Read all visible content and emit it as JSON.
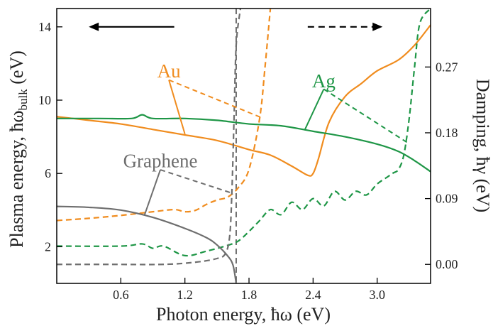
{
  "chart_data": {
    "type": "line",
    "xlabel": "Photon energy, ħω (eV)",
    "ylabel_left": {
      "main": "Plasma energy, ħω",
      "sub": "bulk",
      "unit": " (eV)"
    },
    "ylabel_right": "Damping, ħγ (eV)",
    "xlim": [
      0.0,
      3.5
    ],
    "ylim_left": [
      0,
      15
    ],
    "ylim_right": [
      -0.026,
      0.35
    ],
    "x_ticks": [
      "0.6",
      "1.2",
      "1.8",
      "2.4",
      "3.0"
    ],
    "y_left_ticks": [
      "2",
      "6",
      "10",
      "14"
    ],
    "y_right_ticks": [
      "0.00",
      "0.09",
      "0.18",
      "0.27"
    ],
    "grid": false,
    "colors": {
      "Au": "#f08c1e",
      "Ag": "#1e9646",
      "Graphene": "#6e6e6e"
    },
    "series": [
      {
        "name": "Au",
        "axis": "left",
        "style": "solid",
        "x": [
          0.0,
          0.3,
          0.6,
          0.9,
          1.2,
          1.5,
          1.8,
          2.0,
          2.2,
          2.35,
          2.4,
          2.45,
          2.55,
          2.7,
          2.85,
          3.0,
          3.2,
          3.35,
          3.5
        ],
        "y": [
          9.1,
          8.9,
          8.7,
          8.4,
          8.1,
          7.8,
          7.3,
          7.0,
          6.4,
          5.9,
          6.0,
          6.8,
          8.8,
          10.2,
          10.9,
          11.6,
          12.2,
          13.0,
          14.1
        ]
      },
      {
        "name": "Au",
        "axis": "right",
        "style": "dashed",
        "x": [
          0.0,
          0.3,
          0.6,
          0.9,
          1.1,
          1.2,
          1.3,
          1.4,
          1.5,
          1.6,
          1.7,
          1.8,
          1.9,
          1.95,
          2.0
        ],
        "y": [
          0.06,
          0.063,
          0.067,
          0.072,
          0.075,
          0.072,
          0.074,
          0.082,
          0.088,
          0.092,
          0.105,
          0.13,
          0.2,
          0.27,
          0.35
        ]
      },
      {
        "name": "Ag",
        "axis": "left",
        "style": "solid",
        "x": [
          0.0,
          0.4,
          0.7,
          0.8,
          0.9,
          1.2,
          1.5,
          1.8,
          2.1,
          2.4,
          2.7,
          3.0,
          3.2,
          3.35,
          3.5
        ],
        "y": [
          9.0,
          9.0,
          9.0,
          9.2,
          9.0,
          9.0,
          8.9,
          8.7,
          8.6,
          8.3,
          8.0,
          7.6,
          7.2,
          6.7,
          6.1
        ]
      },
      {
        "name": "Ag",
        "axis": "right",
        "style": "dashed",
        "x": [
          0.0,
          0.6,
          0.8,
          0.9,
          1.0,
          1.2,
          1.4,
          1.6,
          1.7,
          1.8,
          1.9,
          2.0,
          2.1,
          2.2,
          2.3,
          2.4,
          2.5,
          2.6,
          2.7,
          2.8,
          2.9,
          3.0,
          3.1,
          3.15,
          3.2,
          3.25,
          3.3,
          3.35,
          3.4,
          3.5
        ],
        "y": [
          0.025,
          0.025,
          0.028,
          0.022,
          0.025,
          0.012,
          0.018,
          0.026,
          0.032,
          0.045,
          0.06,
          0.075,
          0.068,
          0.085,
          0.075,
          0.09,
          0.08,
          0.1,
          0.088,
          0.1,
          0.095,
          0.11,
          0.12,
          0.125,
          0.13,
          0.15,
          0.2,
          0.27,
          0.33,
          0.35
        ]
      },
      {
        "name": "Graphene",
        "axis": "left",
        "style": "solid",
        "x": [
          0.0,
          0.3,
          0.6,
          0.9,
          1.2,
          1.4,
          1.5,
          1.6,
          1.65,
          1.68
        ],
        "y": [
          4.2,
          4.15,
          4.0,
          3.6,
          3.0,
          2.5,
          2.1,
          1.5,
          1.0,
          0.0
        ]
      },
      {
        "name": "Graphene",
        "axis": "right",
        "style": "dashed",
        "x": [
          0.0,
          0.5,
          1.0,
          1.3,
          1.5,
          1.58,
          1.62,
          1.64,
          1.66,
          1.68,
          1.72
        ],
        "y": [
          0.0,
          0.0,
          0.0,
          0.003,
          0.008,
          0.015,
          0.04,
          0.1,
          0.2,
          0.3,
          0.35
        ]
      }
    ],
    "labels": [
      {
        "text": "Au",
        "color": "#f08c1e",
        "at": [
          1.05,
          11.4
        ],
        "solid_leader": [
          [
            1.05,
            11.1
          ],
          [
            1.2,
            8.15
          ]
        ],
        "dashed_leader": [
          [
            1.05,
            11.1
          ],
          [
            1.93,
            0.2
          ]
        ]
      },
      {
        "text": "Ag",
        "color": "#1e9646",
        "at": [
          2.5,
          10.85
        ],
        "solid_leader": [
          [
            2.5,
            10.6
          ],
          [
            2.32,
            8.35
          ]
        ],
        "dashed_leader": [
          [
            2.5,
            10.6
          ],
          [
            3.3,
            0.165
          ]
        ]
      },
      {
        "text": "Graphene",
        "color": "#6e6e6e",
        "at": [
          0.97,
          6.5
        ],
        "solid_leader": [
          [
            0.97,
            6.2
          ],
          [
            0.82,
            3.7
          ]
        ],
        "dashed_leader": [
          [
            0.97,
            6.2
          ],
          [
            1.63,
            0.098
          ]
        ]
      }
    ],
    "arrows": [
      {
        "direction": "left",
        "style": "solid",
        "x_from": 1.1,
        "x_to": 0.3,
        "y": 14.0
      },
      {
        "direction": "right",
        "style": "dashed",
        "x_from": 2.35,
        "x_to": 3.05,
        "y": 14.0
      }
    ],
    "vline": {
      "x": 1.68,
      "style": "dashed",
      "color": "#6e6e6e"
    }
  }
}
